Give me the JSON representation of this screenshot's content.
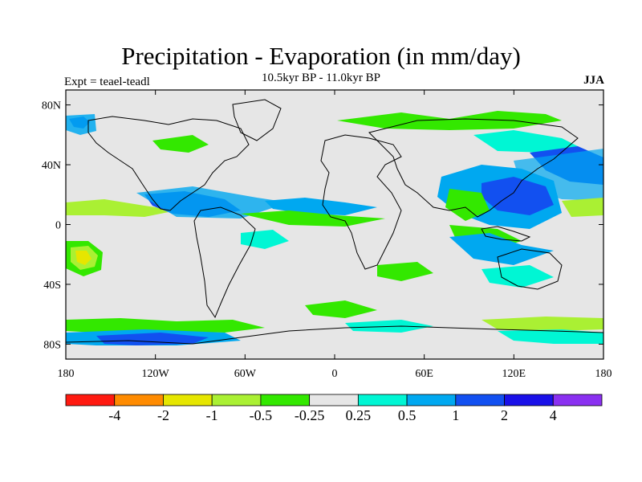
{
  "header": {
    "title": "Precipitation - Evaporation (in mm/day)",
    "subtitle": "10.5kyr BP - 11.0kyr BP",
    "experiment": "Expt = teael-teadl",
    "season": "JJA"
  },
  "axes": {
    "x_ticks": [
      "180",
      "120W",
      "60W",
      "0",
      "60E",
      "120E",
      "180"
    ],
    "y_ticks": [
      "80N",
      "40N",
      "0",
      "40S",
      "80S"
    ]
  },
  "colorbar": {
    "colors": [
      "#ff1a10",
      "#ff8b00",
      "#e6e600",
      "#aaf033",
      "#33e800",
      "#e6e6e6",
      "#00f6d4",
      "#00a8f0",
      "#1250f0",
      "#1a10e8",
      "#8a30f0"
    ],
    "labels": [
      "-4",
      "-2",
      "-1",
      "-0.5",
      "-0.25",
      "0.25",
      "0.5",
      "1",
      "2",
      "4"
    ]
  },
  "colors": {
    "background": "#e6e6e6",
    "coastline": "#000000"
  }
}
